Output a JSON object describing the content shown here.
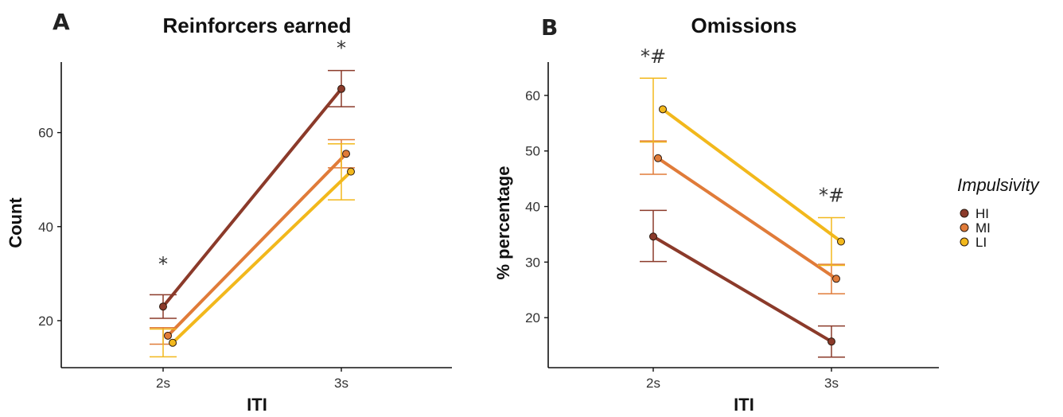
{
  "legend": {
    "title": "Impulsivity",
    "items": [
      {
        "label": "HI",
        "color": "#8B3A2A"
      },
      {
        "label": "MI",
        "color": "#E07B39"
      },
      {
        "label": "LI",
        "color": "#F2B81C"
      }
    ]
  },
  "chart_data": [
    {
      "panel": "A",
      "type": "line",
      "title": "Reinforcers earned",
      "xlabel": "ITI",
      "ylabel": "Count",
      "categories": [
        "2s",
        "3s"
      ],
      "ylim": [
        10,
        75
      ],
      "yticks": [
        20,
        40,
        60
      ],
      "series": [
        {
          "name": "HI",
          "color": "#8B3A2A",
          "values": [
            23,
            69.3
          ],
          "err_low": [
            20.5,
            65.5
          ],
          "err_high": [
            25.5,
            73.2
          ]
        },
        {
          "name": "MI",
          "color": "#E07B39",
          "values": [
            16.8,
            55.5
          ],
          "err_low": [
            15,
            52.5
          ],
          "err_high": [
            18.5,
            58.5
          ]
        },
        {
          "name": "LI",
          "color": "#F2B81C",
          "values": [
            15.3,
            51.7
          ],
          "err_low": [
            12.3,
            45.7
          ],
          "err_high": [
            18.2,
            57.6
          ]
        }
      ],
      "annotations": [
        {
          "text": "*",
          "category": "2s",
          "y": 32
        },
        {
          "text": "*",
          "category": "3s",
          "y": 78
        }
      ]
    },
    {
      "panel": "B",
      "type": "line",
      "title": "Omissions",
      "xlabel": "ITI",
      "ylabel": "% percentage",
      "categories": [
        "2s",
        "3s"
      ],
      "ylim": [
        11,
        66
      ],
      "yticks": [
        20,
        30,
        40,
        50,
        60
      ],
      "series": [
        {
          "name": "HI",
          "color": "#8B3A2A",
          "values": [
            34.6,
            15.7
          ],
          "err_low": [
            30.1,
            12.9
          ],
          "err_high": [
            39.3,
            18.5
          ]
        },
        {
          "name": "MI",
          "color": "#E07B39",
          "values": [
            48.7,
            27
          ],
          "err_low": [
            45.8,
            24.3
          ],
          "err_high": [
            51.8,
            29.6
          ]
        },
        {
          "name": "LI",
          "color": "#F2B81C",
          "values": [
            57.5,
            33.7
          ],
          "err_low": [
            51.6,
            29.4
          ],
          "err_high": [
            63.1,
            38
          ]
        }
      ],
      "annotations": [
        {
          "text": "*#",
          "category": "2s",
          "y": 67
        },
        {
          "text": "*#",
          "category": "3s",
          "y": 42
        }
      ]
    }
  ]
}
